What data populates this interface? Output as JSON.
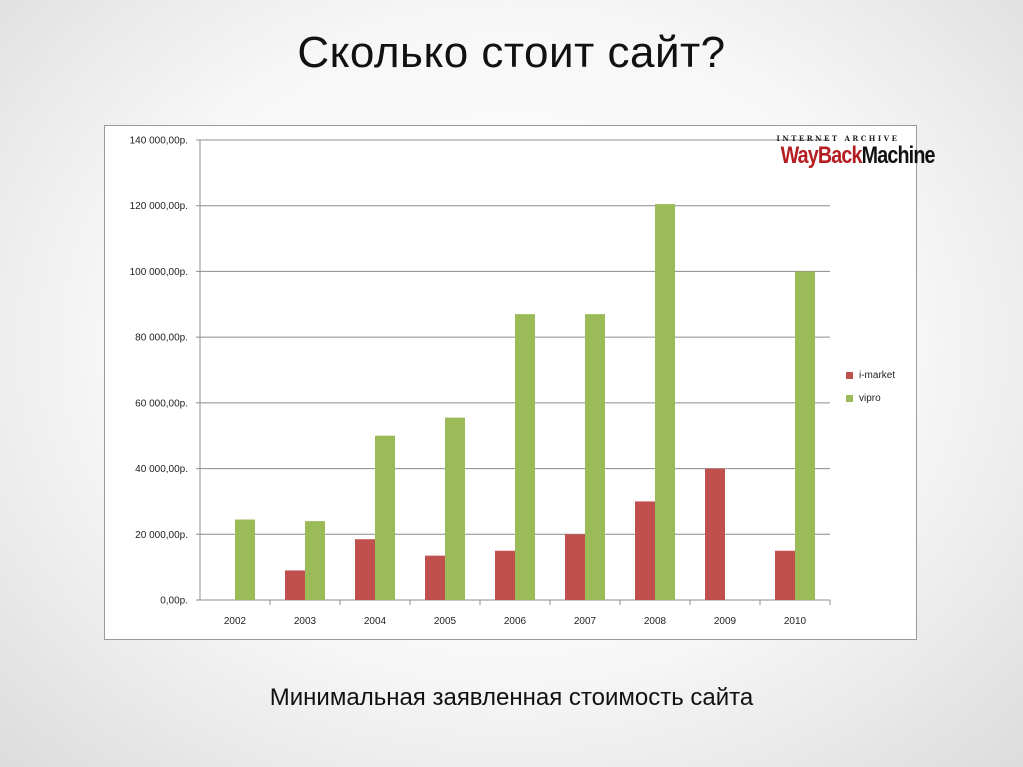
{
  "slide": {
    "title": "Сколько стоит сайт?",
    "caption": "Минимальная заявленная стоимость сайта"
  },
  "watermark": {
    "top_text": "INTERNET ARCHIVE",
    "wayback": "WayBack",
    "machine": "Machine"
  },
  "colors": {
    "i_market": "#c0504d",
    "vipro": "#9bbb59",
    "grid": "#8c8c8c"
  },
  "chart_data": {
    "type": "bar",
    "categories": [
      "2002",
      "2003",
      "2004",
      "2005",
      "2006",
      "2007",
      "2008",
      "2009",
      "2010"
    ],
    "series": [
      {
        "name": "i-market",
        "values": [
          null,
          9000,
          18500,
          13500,
          15000,
          20000,
          30000,
          40000,
          15000
        ]
      },
      {
        "name": "vipro",
        "values": [
          24500,
          24000,
          50000,
          55500,
          87000,
          87000,
          120500,
          null,
          100000
        ]
      }
    ],
    "ylim": [
      0,
      140000
    ],
    "yticks": [
      0,
      20000,
      40000,
      60000,
      80000,
      100000,
      120000,
      140000
    ],
    "ytick_labels": [
      "0,00р.",
      "20 000,00р.",
      "40 000,00р.",
      "60 000,00р.",
      "80 000,00р.",
      "100 000,00р.",
      "120 000,00р.",
      "140 000,00р."
    ],
    "grid": true,
    "legend_position": "right"
  }
}
